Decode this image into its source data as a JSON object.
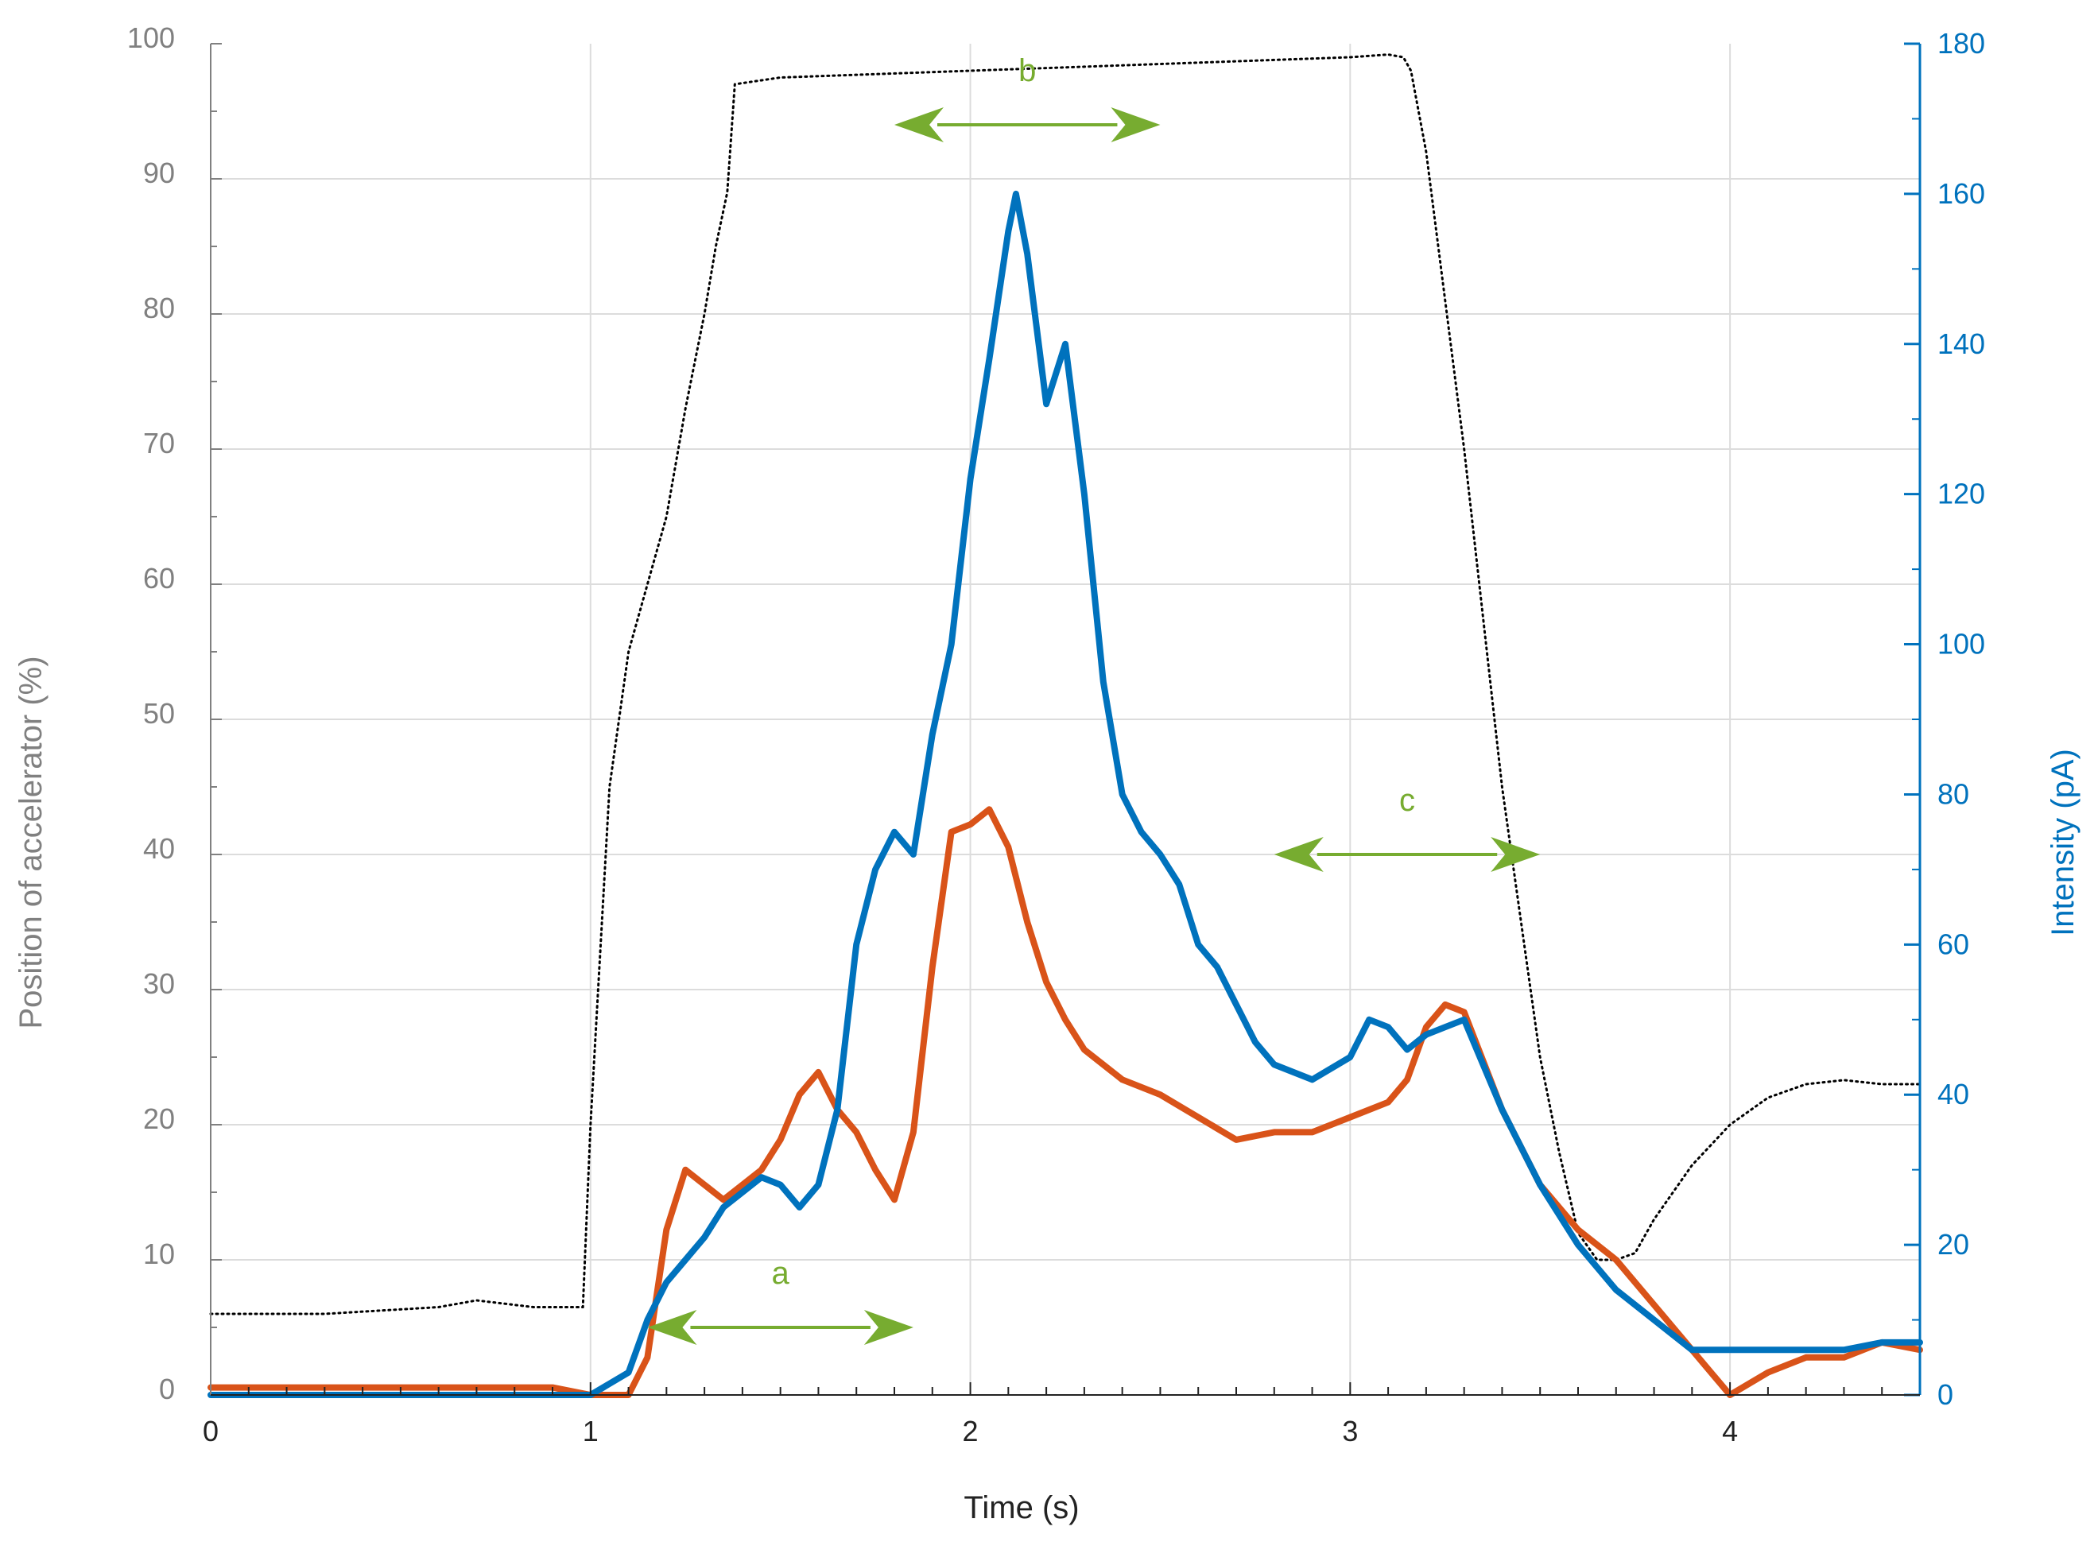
{
  "chart_data": {
    "type": "line",
    "xlabel": "Time (s)",
    "ylabel_left": "Position of accelerator (%)",
    "ylabel_right": "Intensity (pA)",
    "xlim": [
      0,
      4.5
    ],
    "ylim_left": [
      0,
      100
    ],
    "ylim_right": [
      0,
      180
    ],
    "x_ticks": [
      "0",
      "1",
      "2",
      "3",
      "4"
    ],
    "y_left_ticks": [
      "0",
      "10",
      "20",
      "30",
      "40",
      "50",
      "60",
      "70",
      "80",
      "90",
      "100"
    ],
    "y_right_ticks": [
      "0",
      "20",
      "40",
      "60",
      "80",
      "100",
      "120",
      "140",
      "160",
      "180"
    ],
    "grid": true,
    "colors": {
      "axis_left": "#808080",
      "axis_right": "#0072bd",
      "accelerator": "#000000",
      "series_orange": "#d95319",
      "series_blue": "#0072bd",
      "annotation": "#77ac30"
    },
    "series": [
      {
        "axis": "left",
        "style": "dotted",
        "color": "#000000",
        "x": [
          0,
          0.3,
          0.6,
          0.7,
          0.85,
          0.96,
          0.98,
          1.0,
          1.05,
          1.1,
          1.15,
          1.2,
          1.25,
          1.3,
          1.33,
          1.36,
          1.38,
          1.5,
          1.8,
          2.0,
          2.5,
          3.0,
          3.1,
          3.14,
          3.16,
          3.2,
          3.3,
          3.4,
          3.45,
          3.5,
          3.55,
          3.6,
          3.65,
          3.7,
          3.75,
          3.8,
          3.9,
          4.0,
          4.1,
          4.2,
          4.3,
          4.4,
          4.5
        ],
        "y": [
          6,
          6,
          6.5,
          7,
          6.5,
          6.5,
          6.5,
          20,
          45,
          55,
          60,
          65,
          73,
          80,
          85,
          89,
          97,
          97.5,
          97.8,
          98,
          98.5,
          99,
          99.2,
          99,
          98,
          92,
          70,
          45,
          35,
          25,
          18,
          12,
          10,
          10,
          10.5,
          13,
          17,
          20,
          22,
          23,
          23.3,
          23,
          23
        ]
      },
      {
        "axis": "right",
        "style": "solid",
        "color": "#d95319",
        "x": [
          0,
          0.3,
          0.6,
          0.9,
          1.0,
          1.1,
          1.15,
          1.2,
          1.25,
          1.3,
          1.35,
          1.4,
          1.45,
          1.5,
          1.55,
          1.6,
          1.65,
          1.7,
          1.75,
          1.8,
          1.85,
          1.9,
          1.95,
          2.0,
          2.05,
          2.1,
          2.15,
          2.2,
          2.25,
          2.3,
          2.4,
          2.5,
          2.6,
          2.7,
          2.8,
          2.9,
          3.0,
          3.1,
          3.15,
          3.2,
          3.25,
          3.3,
          3.4,
          3.5,
          3.6,
          3.7,
          3.8,
          3.9,
          4.0,
          4.1,
          4.2,
          4.3,
          4.4,
          4.5
        ],
        "y": [
          1,
          1,
          1,
          1,
          0,
          0,
          5,
          22,
          30,
          28,
          26,
          28,
          30,
          34,
          40,
          43,
          38,
          35,
          30,
          26,
          35,
          57,
          75,
          76,
          78,
          73,
          63,
          55,
          50,
          46,
          42,
          40,
          37,
          34,
          35,
          35,
          37,
          39,
          42,
          49,
          52,
          51,
          38,
          28,
          22,
          18,
          12,
          6,
          0,
          3,
          5,
          5,
          7,
          6
        ]
      },
      {
        "axis": "right",
        "style": "solid",
        "color": "#0072bd",
        "x": [
          0,
          0.5,
          0.9,
          1.0,
          1.1,
          1.15,
          1.2,
          1.25,
          1.3,
          1.35,
          1.4,
          1.45,
          1.5,
          1.55,
          1.6,
          1.65,
          1.7,
          1.75,
          1.8,
          1.85,
          1.9,
          1.95,
          2.0,
          2.05,
          2.1,
          2.12,
          2.15,
          2.2,
          2.25,
          2.3,
          2.35,
          2.4,
          2.45,
          2.5,
          2.55,
          2.6,
          2.65,
          2.7,
          2.75,
          2.8,
          2.9,
          3.0,
          3.05,
          3.1,
          3.15,
          3.2,
          3.25,
          3.3,
          3.4,
          3.5,
          3.6,
          3.7,
          3.8,
          3.9,
          4.0,
          4.1,
          4.2,
          4.3,
          4.4,
          4.5
        ],
        "y": [
          0,
          0,
          0,
          0,
          3,
          10,
          15,
          18,
          21,
          25,
          27,
          29,
          28,
          25,
          28,
          38,
          60,
          70,
          75,
          72,
          88,
          100,
          122,
          138,
          155,
          160,
          152,
          132,
          140,
          120,
          95,
          80,
          75,
          72,
          68,
          60,
          57,
          52,
          47,
          44,
          42,
          45,
          50,
          49,
          46,
          48,
          49,
          50,
          38,
          28,
          20,
          14,
          10,
          6,
          6,
          6,
          6,
          6,
          7,
          7
        ]
      }
    ],
    "annotations": [
      {
        "label": "a",
        "x_from": 1.15,
        "x_to": 1.85,
        "y_left": 5
      },
      {
        "label": "b",
        "x_from": 1.8,
        "x_to": 2.5,
        "y_left": 94
      },
      {
        "label": "c",
        "x_from": 2.8,
        "x_to": 3.5,
        "y_left": 40
      }
    ]
  }
}
